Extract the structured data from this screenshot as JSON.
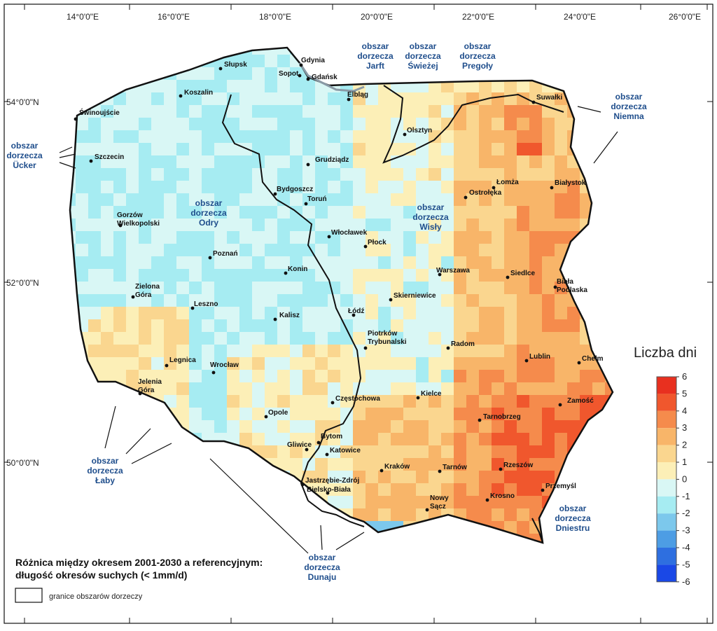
{
  "map": {
    "title_line1": "Różnica między okresem 2001-2030 a referencyjnym:",
    "title_line2": "długość okresów suchych (< 1mm/d)",
    "boundary_legend_label": "granice obszarów dorzeczy",
    "longitude_labels": [
      "14°0'0\"E",
      "16°0'0\"E",
      "18°0'0\"E",
      "20°0'0\"E",
      "22°0'0\"E",
      "24°0'0\"E",
      "26°0'0\"E"
    ],
    "latitude_labels": [
      "54°0'0\"N",
      "52°0'0\"N",
      "50°0'0\"N"
    ],
    "colors": {
      "river_boundary": "#111111",
      "basin_label": "#1f4e8c",
      "sea_outline": "#8a9aa6"
    }
  },
  "legend": {
    "title": "Liczba dni",
    "ticks": [
      "6",
      "5",
      "4",
      "3",
      "2",
      "1",
      "0",
      "-1",
      "-2",
      "-3",
      "-4",
      "-5",
      "-6"
    ],
    "colors": [
      "#e8301f",
      "#f0572d",
      "#f58b4c",
      "#f8b569",
      "#fad68f",
      "#fcefb7",
      "#d9f7f5",
      "#a6ecf2",
      "#7cc8ec",
      "#4d9de4",
      "#2e6fe0",
      "#1a48e6",
      "#0a1fe8"
    ]
  },
  "cities": [
    {
      "name": "Słupsk"
    },
    {
      "name": "Gdynia"
    },
    {
      "name": "Sopot"
    },
    {
      "name": "Gdańsk"
    },
    {
      "name": "Koszalin"
    },
    {
      "name": "Elbląg"
    },
    {
      "name": "Świnoujście"
    },
    {
      "name": "Olsztyn"
    },
    {
      "name": "Suwałki"
    },
    {
      "name": "Szczecin"
    },
    {
      "name": "Grudziądz"
    },
    {
      "name": "Łomża"
    },
    {
      "name": "Białystok"
    },
    {
      "name": "Bydgoszcz"
    },
    {
      "name": "Ostrołęka"
    },
    {
      "name": "Toruń"
    },
    {
      "name": "Gorzów Wielkopolski"
    },
    {
      "name": "Włocławek"
    },
    {
      "name": "Płock"
    },
    {
      "name": "Poznań"
    },
    {
      "name": "Konin"
    },
    {
      "name": "Warszawa"
    },
    {
      "name": "Siedlce"
    },
    {
      "name": "Biała Podlaska"
    },
    {
      "name": "Zielona Góra"
    },
    {
      "name": "Leszno"
    },
    {
      "name": "Skierniewice"
    },
    {
      "name": "Łódź"
    },
    {
      "name": "Kalisz"
    },
    {
      "name": "Piotrków Trybunalski"
    },
    {
      "name": "Radom"
    },
    {
      "name": "Legnica"
    },
    {
      "name": "Lublin"
    },
    {
      "name": "Chełm"
    },
    {
      "name": "Wrocław"
    },
    {
      "name": "Jelenia Góra"
    },
    {
      "name": "Kielce"
    },
    {
      "name": "Częstochowa"
    },
    {
      "name": "Zamość"
    },
    {
      "name": "Opole"
    },
    {
      "name": "Tarnobrzeg"
    },
    {
      "name": "Bytom"
    },
    {
      "name": "Gliwice"
    },
    {
      "name": "Katowice"
    },
    {
      "name": "Kraków"
    },
    {
      "name": "Tarnów"
    },
    {
      "name": "Rzeszów"
    },
    {
      "name": "Jastrzębie-Zdrój"
    },
    {
      "name": "Bielsko-Biała"
    },
    {
      "name": "Przemyśl"
    },
    {
      "name": "Nowy Sącz"
    },
    {
      "name": "Krosno"
    }
  ],
  "basins": [
    {
      "lines": [
        "obszar",
        "dorzecza",
        "Jarft"
      ]
    },
    {
      "lines": [
        "obszar",
        "dorzecza",
        "Świeżej"
      ]
    },
    {
      "lines": [
        "obszar",
        "dorzecza",
        "Pregoły"
      ]
    },
    {
      "lines": [
        "obszar",
        "dorzecza",
        "Niemna"
      ]
    },
    {
      "lines": [
        "obszar",
        "dorzecza",
        "Ücker"
      ]
    },
    {
      "lines": [
        "obszar",
        "dorzecza",
        "Odry"
      ]
    },
    {
      "lines": [
        "obszar",
        "dorzecza",
        "Wisły"
      ]
    },
    {
      "lines": [
        "obszar",
        "dorzecza",
        "Łaby"
      ]
    },
    {
      "lines": [
        "obszar",
        "dorzecza",
        "Dunaju"
      ]
    },
    {
      "lines": [
        "obszar",
        "dorzecza",
        "Dniestru"
      ]
    }
  ]
}
